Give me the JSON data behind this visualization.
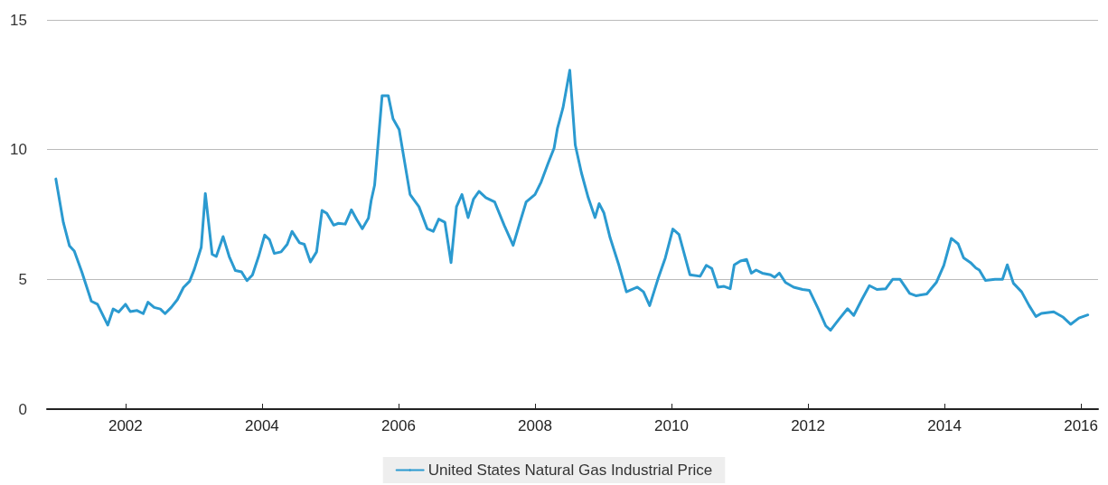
{
  "chart_data": {
    "type": "line",
    "x": [
      2000.98,
      2001.09,
      2001.18,
      2001.25,
      2001.36,
      2001.5,
      2001.59,
      2001.74,
      2001.82,
      2001.9,
      2002.0,
      2002.07,
      2002.17,
      2002.26,
      2002.33,
      2002.42,
      2002.51,
      2002.58,
      2002.67,
      2002.76,
      2002.85,
      2002.94,
      2003.01,
      2003.11,
      2003.17,
      2003.27,
      2003.33,
      2003.43,
      2003.52,
      2003.61,
      2003.7,
      2003.78,
      2003.86,
      2003.95,
      2004.04,
      2004.11,
      2004.18,
      2004.28,
      2004.37,
      2004.44,
      2004.55,
      2004.62,
      2004.71,
      2004.8,
      2004.88,
      2004.95,
      2005.05,
      2005.12,
      2005.22,
      2005.31,
      2005.39,
      2005.47,
      2005.56,
      2005.6,
      2005.65,
      2005.76,
      2005.85,
      2005.92,
      2006.01,
      2006.17,
      2006.3,
      2006.42,
      2006.51,
      2006.59,
      2006.68,
      2006.77,
      2006.85,
      2006.93,
      2007.02,
      2007.1,
      2007.18,
      2007.28,
      2007.41,
      2007.55,
      2007.68,
      2007.78,
      2007.87,
      2008.0,
      2008.09,
      2008.19,
      2008.28,
      2008.33,
      2008.41,
      2008.51,
      2008.59,
      2008.68,
      2008.78,
      2008.88,
      2008.94,
      2009.01,
      2009.1,
      2009.23,
      2009.34,
      2009.5,
      2009.59,
      2009.68,
      2009.8,
      2009.91,
      2010.02,
      2010.11,
      2010.27,
      2010.42,
      2010.51,
      2010.59,
      2010.68,
      2010.77,
      2010.86,
      2010.92,
      2011.01,
      2011.1,
      2011.17,
      2011.24,
      2011.33,
      2011.45,
      2011.51,
      2011.58,
      2011.67,
      2011.79,
      2011.92,
      2012.02,
      2012.15,
      2012.26,
      2012.33,
      2012.45,
      2012.58,
      2012.67,
      2012.79,
      2012.9,
      2013.01,
      2013.14,
      2013.24,
      2013.35,
      2013.49,
      2013.58,
      2013.74,
      2013.88,
      2013.99,
      2014.1,
      2014.2,
      2014.28,
      2014.38,
      2014.46,
      2014.51,
      2014.6,
      2014.74,
      2014.85,
      2014.92,
      2015.01,
      2015.13,
      2015.24,
      2015.34,
      2015.42,
      2015.6,
      2015.74,
      2015.85,
      2015.97,
      2016.1
    ],
    "series": [
      {
        "name": "United States Natural Gas Industrial Price",
        "color": "#2b9ad0",
        "values": [
          8.87,
          7.19,
          6.29,
          6.09,
          5.29,
          4.16,
          4.04,
          3.24,
          3.86,
          3.74,
          4.04,
          3.76,
          3.8,
          3.68,
          4.12,
          3.92,
          3.86,
          3.68,
          3.92,
          4.22,
          4.69,
          4.93,
          5.4,
          6.24,
          8.31,
          5.97,
          5.88,
          6.65,
          5.88,
          5.34,
          5.29,
          4.95,
          5.17,
          5.88,
          6.71,
          6.53,
          6.0,
          6.06,
          6.35,
          6.85,
          6.41,
          6.35,
          5.67,
          6.06,
          7.66,
          7.54,
          7.09,
          7.16,
          7.13,
          7.68,
          7.3,
          6.95,
          7.36,
          8.04,
          8.63,
          12.08,
          12.08,
          11.19,
          10.77,
          8.27,
          7.8,
          6.96,
          6.85,
          7.32,
          7.2,
          5.65,
          7.8,
          8.27,
          7.38,
          8.1,
          8.39,
          8.15,
          7.98,
          7.08,
          6.31,
          7.2,
          7.98,
          8.27,
          8.75,
          9.46,
          10.06,
          10.83,
          11.61,
          13.06,
          10.18,
          9.11,
          8.15,
          7.38,
          7.92,
          7.56,
          6.61,
          5.54,
          4.52,
          4.7,
          4.52,
          3.99,
          5.0,
          5.83,
          6.94,
          6.73,
          5.18,
          5.12,
          5.54,
          5.42,
          4.7,
          4.73,
          4.64,
          5.56,
          5.71,
          5.77,
          5.24,
          5.36,
          5.24,
          5.18,
          5.08,
          5.24,
          4.88,
          4.7,
          4.61,
          4.58,
          3.87,
          3.21,
          3.04,
          3.45,
          3.87,
          3.61,
          4.23,
          4.76,
          4.61,
          4.64,
          5.0,
          5.0,
          4.46,
          4.37,
          4.44,
          4.88,
          5.54,
          6.58,
          6.37,
          5.83,
          5.65,
          5.44,
          5.36,
          4.96,
          5.0,
          5.0,
          5.56,
          4.85,
          4.52,
          3.99,
          3.57,
          3.69,
          3.75,
          3.54,
          3.27,
          3.51,
          3.63
        ]
      }
    ],
    "xlim": [
      2000.85,
      2016.25
    ],
    "xticks": [
      2002,
      2004,
      2006,
      2008,
      2010,
      2012,
      2014,
      2016
    ],
    "ylim": [
      0,
      15
    ],
    "yticks": [
      0,
      5,
      10,
      15
    ],
    "grid": "y",
    "legend": "bottom",
    "line_style": "solid"
  }
}
